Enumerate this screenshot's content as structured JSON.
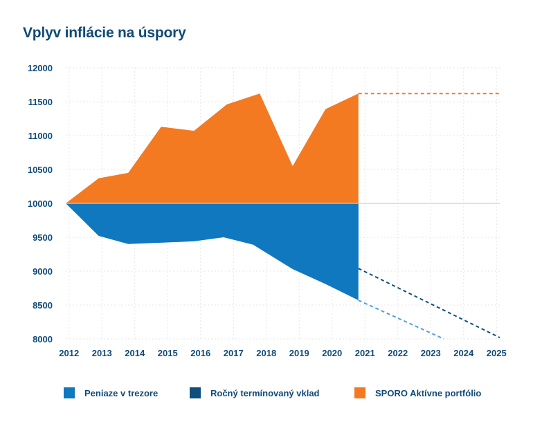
{
  "chart_data": {
    "type": "area",
    "title": "Vplyv inflácie na úspory",
    "xlabel": "",
    "ylabel": "",
    "baseline": 10000,
    "ylim": [
      8000,
      12000
    ],
    "yticks": [
      8000,
      8500,
      9000,
      9500,
      10000,
      10500,
      11000,
      11500,
      12000
    ],
    "xticks": [
      "2012",
      "2013",
      "2014",
      "2015",
      "2016",
      "2017",
      "2018",
      "2019",
      "2020",
      "2021",
      "2022",
      "2023",
      "2024",
      "2025"
    ],
    "xlim": [
      2011.9,
      2025.1
    ],
    "series": [
      {
        "name": "SPORO Aktívne portfólio",
        "color": "#f37a21",
        "points": [
          [
            2011.9,
            10000
          ],
          [
            2012.9,
            10370
          ],
          [
            2013.8,
            10450
          ],
          [
            2014.8,
            11130
          ],
          [
            2015.8,
            11070
          ],
          [
            2016.8,
            11460
          ],
          [
            2017.8,
            11620
          ],
          [
            2018.8,
            10550
          ],
          [
            2019.8,
            11390
          ],
          [
            2020.8,
            11620
          ]
        ],
        "projection": [
          [
            2020.8,
            11620
          ],
          [
            2025.1,
            11620
          ]
        ]
      },
      {
        "name": "Ročný termínovaný vklad",
        "color": "#104e7c",
        "points": [
          [
            2011.9,
            10000
          ],
          [
            2012.9,
            9730
          ],
          [
            2013.9,
            9670
          ],
          [
            2014.9,
            9740
          ],
          [
            2015.9,
            9820
          ],
          [
            2016.7,
            9920
          ],
          [
            2017.7,
            9650
          ],
          [
            2018.7,
            9410
          ],
          [
            2019.7,
            9180
          ],
          [
            2020.8,
            9040
          ]
        ],
        "projection": [
          [
            2020.8,
            9040
          ],
          [
            2025.1,
            8020
          ]
        ]
      },
      {
        "name": "Peniaze v trezore",
        "color": "#0f78bf",
        "points": [
          [
            2011.9,
            10000
          ],
          [
            2012.9,
            9520
          ],
          [
            2013.8,
            9400
          ],
          [
            2014.8,
            9420
          ],
          [
            2015.8,
            9440
          ],
          [
            2016.7,
            9500
          ],
          [
            2017.6,
            9390
          ],
          [
            2018.8,
            9030
          ],
          [
            2019.8,
            8810
          ],
          [
            2020.8,
            8570
          ]
        ],
        "projection": [
          [
            2020.8,
            8570
          ],
          [
            2023.4,
            8000
          ]
        ]
      }
    ]
  },
  "legend": [
    {
      "label": "Peniaze v trezore",
      "color": "#0f78bf"
    },
    {
      "label": "Ročný termínovaný vklad",
      "color": "#104e7c"
    },
    {
      "label": "SPORO Aktívne portfólio",
      "color": "#f37a21"
    }
  ],
  "colors": {
    "axis_text": "#0f4a78",
    "grid": "#e6e6e6",
    "baseline": "#cfcfcf"
  }
}
